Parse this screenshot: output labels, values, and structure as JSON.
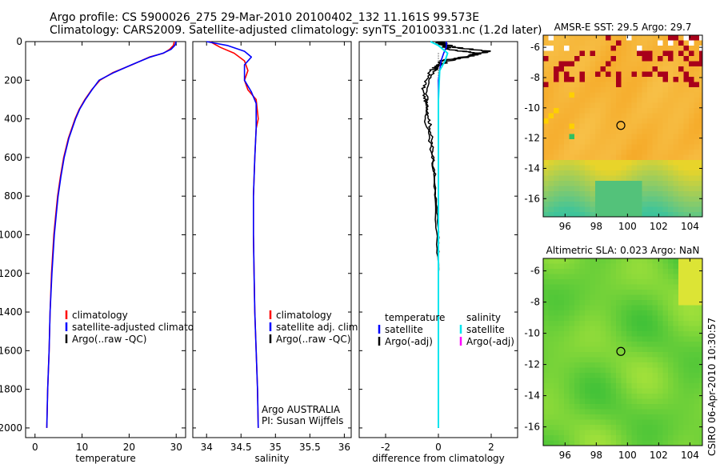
{
  "header": {
    "line1": "Argo profile: CS 5900026_275 29-Mar-2010 20100402_132 11.161S 99.573E",
    "line2": "Climatology: CARS2009. Satellite-adjusted climatology: synTS_20100331.nc (1.2d later)"
  },
  "colors": {
    "climatology": "#ff0000",
    "satellite": "#0000ff",
    "argo": "#000000",
    "diff_salinity_satellite": "#00e5ee",
    "diff_salinity_argo": "#ff00ff"
  },
  "chart_data": [
    {
      "type": "line",
      "xlabel": "temperature",
      "ylabel": "",
      "xlim": [
        -2,
        32
      ],
      "ylim": [
        2050,
        0
      ],
      "xticks": [
        0,
        10,
        20,
        30
      ],
      "yticks": [
        0,
        200,
        400,
        600,
        800,
        1000,
        1200,
        1400,
        1600,
        1800,
        2000
      ],
      "legend": [
        "climatology",
        "satellite-adjusted climatology",
        "Argo(..raw -QC)"
      ],
      "series": [
        {
          "name": "climatology",
          "color": "#ff0000",
          "x": [
            29.6,
            29.4,
            28.6,
            27.3,
            24.3,
            20.6,
            16.6,
            13.8,
            12.0,
            10.6,
            9.4,
            8.5,
            7.1,
            6.1,
            5.4,
            4.8,
            4.4,
            4.0,
            3.5,
            3.2,
            3.0,
            2.7,
            2.5
          ],
          "y": [
            0,
            20,
            40,
            60,
            80,
            120,
            160,
            200,
            250,
            300,
            350,
            400,
            500,
            600,
            700,
            800,
            900,
            1000,
            1200,
            1400,
            1600,
            1800,
            2000
          ]
        },
        {
          "name": "satellite-adjusted climatology",
          "color": "#0000ff",
          "x": [
            30.0,
            29.7,
            28.9,
            27.2,
            24.5,
            20.5,
            16.8,
            13.6,
            12.1,
            10.7,
            9.5,
            8.6,
            7.2,
            6.2,
            5.5,
            4.9,
            4.5,
            4.1,
            3.6,
            3.2,
            3.0,
            2.7,
            2.5
          ],
          "y": [
            0,
            20,
            40,
            60,
            80,
            120,
            160,
            200,
            250,
            300,
            350,
            400,
            500,
            600,
            700,
            800,
            900,
            1000,
            1200,
            1400,
            1600,
            1800,
            2000
          ]
        }
      ]
    },
    {
      "type": "line",
      "xlabel": "salinity",
      "xlim": [
        33.8,
        36.1
      ],
      "ylim": [
        2050,
        0
      ],
      "xticks": [
        34,
        34.5,
        35,
        35.5,
        36
      ],
      "legend": [
        "climatology",
        "satellite adj. clim.",
        "Argo(..raw -QC)"
      ],
      "annotation": [
        "Argo AUSTRALIA",
        "PI: Susan Wijffels"
      ],
      "series": [
        {
          "name": "climatology",
          "color": "#ff0000",
          "x": [
            34.05,
            34.2,
            34.4,
            34.55,
            34.6,
            34.55,
            34.6,
            34.72,
            34.75,
            34.72,
            34.7,
            34.68,
            34.68,
            34.69,
            34.7,
            34.72,
            34.74,
            34.75
          ],
          "y": [
            0,
            30,
            60,
            100,
            150,
            200,
            250,
            300,
            400,
            450,
            600,
            800,
            1000,
            1200,
            1400,
            1600,
            1800,
            2000
          ]
        },
        {
          "name": "satellite adj. clim.",
          "color": "#0000ff",
          "x": [
            34.0,
            34.3,
            34.55,
            34.65,
            34.55,
            34.55,
            34.65,
            34.72,
            34.72,
            34.7,
            34.68,
            34.68,
            34.69,
            34.7,
            34.72,
            34.74,
            34.75
          ],
          "y": [
            0,
            20,
            50,
            80,
            120,
            200,
            260,
            320,
            450,
            600,
            800,
            1000,
            1200,
            1400,
            1600,
            1800,
            2000
          ]
        }
      ]
    },
    {
      "type": "line",
      "xlabel": "difference from climatology",
      "xlim": [
        -3,
        3
      ],
      "ylim": [
        2050,
        0
      ],
      "xticks": [
        -2,
        0,
        2
      ],
      "legend_left_title": "temperature",
      "legend_left": [
        "satellite",
        "Argo(-adj)"
      ],
      "legend_right_title": "salinity",
      "legend_right": [
        "satellite",
        "Argo(-adj)"
      ],
      "series": [
        {
          "name": "temperature satellite",
          "color": "#0000ff",
          "x": [
            0.3,
            0.3,
            0.2,
            0.1,
            0.0,
            0.0,
            0.0,
            0.0
          ],
          "y": [
            0,
            30,
            60,
            100,
            200,
            400,
            1000,
            2000
          ]
        },
        {
          "name": "salinity satellite",
          "color": "#00e5ee",
          "x": [
            -0.3,
            0.0,
            0.35,
            0.25,
            0.05,
            0.0,
            0.0,
            0.0
          ],
          "y": [
            0,
            20,
            60,
            100,
            150,
            300,
            1000,
            2000
          ]
        },
        {
          "name": "temperature Argo",
          "color": "#000000",
          "x": [
            0.0,
            0.4,
            1.5,
            1.1,
            0.3,
            -0.3,
            -0.6,
            -0.4,
            -0.3,
            -0.2,
            -0.1,
            0.0,
            0.0
          ],
          "y": [
            0,
            40,
            60,
            80,
            100,
            150,
            250,
            350,
            450,
            600,
            800,
            1000,
            1200
          ]
        },
        {
          "name": "temperature Argo (second)",
          "color": "#000000",
          "x": [
            0.0,
            0.6,
            1.9,
            1.3,
            0.1,
            -0.4,
            -0.5,
            -0.2,
            -0.1,
            0.0
          ],
          "y": [
            0,
            30,
            50,
            70,
            100,
            200,
            400,
            600,
            900,
            1200
          ]
        }
      ]
    },
    {
      "type": "heatmap",
      "title": "AMSR-E SST: 29.5 Argo: 29.7",
      "xticks": [
        96,
        98,
        100,
        102,
        104
      ],
      "yticks": [
        -6,
        -8,
        -10,
        -12,
        -14,
        -16
      ],
      "xlim": [
        94.6,
        104.8
      ],
      "ylim": [
        -17.2,
        -5.2
      ],
      "marker": {
        "lon": 99.573,
        "lat": -11.161
      }
    },
    {
      "type": "heatmap",
      "title": "Altimetric SLA: 0.023 Argo: NaN",
      "xticks": [
        96,
        98,
        100,
        102,
        104
      ],
      "yticks": [
        -6,
        -8,
        -10,
        -12,
        -14,
        -16
      ],
      "xlim": [
        94.6,
        104.8
      ],
      "ylim": [
        -17.2,
        -5.2
      ],
      "marker": {
        "lon": 99.573,
        "lat": -11.161
      }
    }
  ],
  "stamp": "CSIRO 06-Apr-2010 10:30:57"
}
